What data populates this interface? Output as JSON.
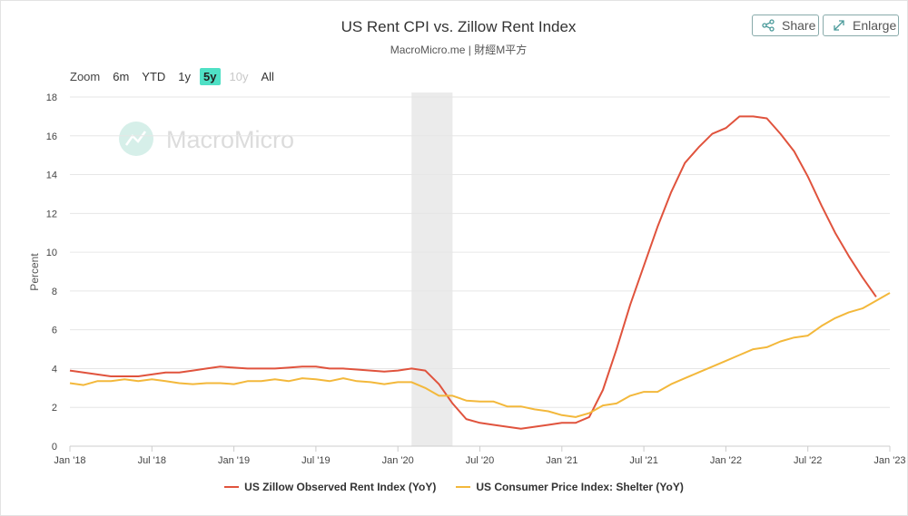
{
  "header": {
    "title": "US Rent CPI vs. Zillow Rent Index",
    "subtitle": "MacroMicro.me | 財經M平方",
    "share_label": "Share",
    "enlarge_label": "Enlarge"
  },
  "zoom": {
    "label": "Zoom",
    "buttons": [
      "6m",
      "YTD",
      "1y",
      "5y",
      "10y",
      "All"
    ],
    "active": "5y",
    "disabled": [
      "10y"
    ]
  },
  "watermark": {
    "text": "MacroMicro"
  },
  "colors": {
    "zillow": "#e0533d",
    "cpi": "#f3b83b",
    "shade": "#ebebeb",
    "watermark": "#d6efe9"
  },
  "chart_data": {
    "type": "line",
    "title": "US Rent CPI vs. Zillow Rent Index",
    "ylabel": "Percent",
    "xlabel": "",
    "ylim": [
      0,
      18
    ],
    "y_ticks": [
      0,
      2,
      4,
      6,
      8,
      10,
      12,
      14,
      16,
      18
    ],
    "x_range": [
      "2018-01",
      "2023-01"
    ],
    "x_ticks": [
      {
        "date": "2018-01",
        "label": "Jan '18"
      },
      {
        "date": "2018-07",
        "label": "Jul '18"
      },
      {
        "date": "2019-01",
        "label": "Jan '19"
      },
      {
        "date": "2019-07",
        "label": "Jul '19"
      },
      {
        "date": "2020-01",
        "label": "Jan '20"
      },
      {
        "date": "2020-07",
        "label": "Jul '20"
      },
      {
        "date": "2021-01",
        "label": "Jan '21"
      },
      {
        "date": "2021-07",
        "label": "Jul '21"
      },
      {
        "date": "2022-01",
        "label": "Jan '22"
      },
      {
        "date": "2022-07",
        "label": "Jul '22"
      },
      {
        "date": "2023-01",
        "label": "Jan '23"
      }
    ],
    "shaded_region": [
      "2020-02",
      "2020-04"
    ],
    "grid": true,
    "legend_position": "bottom",
    "series": [
      {
        "name": "US Zillow Observed Rent Index (YoY)",
        "color": "#e0533d",
        "points": [
          [
            "2018-01",
            3.9
          ],
          [
            "2018-02",
            3.8
          ],
          [
            "2018-03",
            3.7
          ],
          [
            "2018-04",
            3.6
          ],
          [
            "2018-05",
            3.6
          ],
          [
            "2018-06",
            3.6
          ],
          [
            "2018-07",
            3.7
          ],
          [
            "2018-08",
            3.8
          ],
          [
            "2018-09",
            3.8
          ],
          [
            "2018-10",
            3.9
          ],
          [
            "2018-11",
            4.0
          ],
          [
            "2018-12",
            4.1
          ],
          [
            "2019-01",
            4.05
          ],
          [
            "2019-02",
            4.0
          ],
          [
            "2019-03",
            4.0
          ],
          [
            "2019-04",
            4.0
          ],
          [
            "2019-05",
            4.05
          ],
          [
            "2019-06",
            4.1
          ],
          [
            "2019-07",
            4.1
          ],
          [
            "2019-08",
            4.0
          ],
          [
            "2019-09",
            4.0
          ],
          [
            "2019-10",
            3.95
          ],
          [
            "2019-11",
            3.9
          ],
          [
            "2019-12",
            3.85
          ],
          [
            "2020-01",
            3.9
          ],
          [
            "2020-02",
            4.0
          ],
          [
            "2020-03",
            3.9
          ],
          [
            "2020-04",
            3.2
          ],
          [
            "2020-05",
            2.2
          ],
          [
            "2020-06",
            1.4
          ],
          [
            "2020-07",
            1.2
          ],
          [
            "2020-08",
            1.1
          ],
          [
            "2020-09",
            1.0
          ],
          [
            "2020-10",
            0.9
          ],
          [
            "2020-11",
            1.0
          ],
          [
            "2020-12",
            1.1
          ],
          [
            "2021-01",
            1.2
          ],
          [
            "2021-02",
            1.2
          ],
          [
            "2021-03",
            1.5
          ],
          [
            "2021-04",
            2.9
          ],
          [
            "2021-05",
            5.0
          ],
          [
            "2021-06",
            7.3
          ],
          [
            "2021-07",
            9.3
          ],
          [
            "2021-08",
            11.3
          ],
          [
            "2021-09",
            13.1
          ],
          [
            "2021-10",
            14.6
          ],
          [
            "2021-11",
            15.4
          ],
          [
            "2021-12",
            16.1
          ],
          [
            "2022-01",
            16.4
          ],
          [
            "2022-02",
            17.0
          ],
          [
            "2022-03",
            17.0
          ],
          [
            "2022-04",
            16.9
          ],
          [
            "2022-05",
            16.1
          ],
          [
            "2022-06",
            15.2
          ],
          [
            "2022-07",
            13.9
          ],
          [
            "2022-08",
            12.4
          ],
          [
            "2022-09",
            11.0
          ],
          [
            "2022-10",
            9.8
          ],
          [
            "2022-11",
            8.7
          ],
          [
            "2022-12",
            7.7
          ]
        ]
      },
      {
        "name": "US Consumer Price Index: Shelter (YoY)",
        "color": "#f3b83b",
        "points": [
          [
            "2018-01",
            3.25
          ],
          [
            "2018-02",
            3.15
          ],
          [
            "2018-03",
            3.35
          ],
          [
            "2018-04",
            3.35
          ],
          [
            "2018-05",
            3.45
          ],
          [
            "2018-06",
            3.35
          ],
          [
            "2018-07",
            3.45
          ],
          [
            "2018-08",
            3.35
          ],
          [
            "2018-09",
            3.25
          ],
          [
            "2018-10",
            3.2
          ],
          [
            "2018-11",
            3.25
          ],
          [
            "2018-12",
            3.25
          ],
          [
            "2019-01",
            3.2
          ],
          [
            "2019-02",
            3.35
          ],
          [
            "2019-03",
            3.35
          ],
          [
            "2019-04",
            3.45
          ],
          [
            "2019-05",
            3.35
          ],
          [
            "2019-06",
            3.5
          ],
          [
            "2019-07",
            3.45
          ],
          [
            "2019-08",
            3.35
          ],
          [
            "2019-09",
            3.5
          ],
          [
            "2019-10",
            3.35
          ],
          [
            "2019-11",
            3.3
          ],
          [
            "2019-12",
            3.2
          ],
          [
            "2020-01",
            3.3
          ],
          [
            "2020-02",
            3.3
          ],
          [
            "2020-03",
            3.0
          ],
          [
            "2020-04",
            2.6
          ],
          [
            "2020-05",
            2.6
          ],
          [
            "2020-06",
            2.35
          ],
          [
            "2020-07",
            2.3
          ],
          [
            "2020-08",
            2.3
          ],
          [
            "2020-09",
            2.05
          ],
          [
            "2020-10",
            2.05
          ],
          [
            "2020-11",
            1.9
          ],
          [
            "2020-12",
            1.8
          ],
          [
            "2021-01",
            1.6
          ],
          [
            "2021-02",
            1.5
          ],
          [
            "2021-03",
            1.7
          ],
          [
            "2021-04",
            2.1
          ],
          [
            "2021-05",
            2.2
          ],
          [
            "2021-06",
            2.6
          ],
          [
            "2021-07",
            2.8
          ],
          [
            "2021-08",
            2.8
          ],
          [
            "2021-09",
            3.2
          ],
          [
            "2021-10",
            3.5
          ],
          [
            "2021-11",
            3.8
          ],
          [
            "2021-12",
            4.1
          ],
          [
            "2022-01",
            4.4
          ],
          [
            "2022-02",
            4.7
          ],
          [
            "2022-03",
            5.0
          ],
          [
            "2022-04",
            5.1
          ],
          [
            "2022-05",
            5.4
          ],
          [
            "2022-06",
            5.6
          ],
          [
            "2022-07",
            5.7
          ],
          [
            "2022-08",
            6.2
          ],
          [
            "2022-09",
            6.6
          ],
          [
            "2022-10",
            6.9
          ],
          [
            "2022-11",
            7.1
          ],
          [
            "2022-12",
            7.5
          ],
          [
            "2023-01",
            7.9
          ]
        ]
      }
    ]
  }
}
